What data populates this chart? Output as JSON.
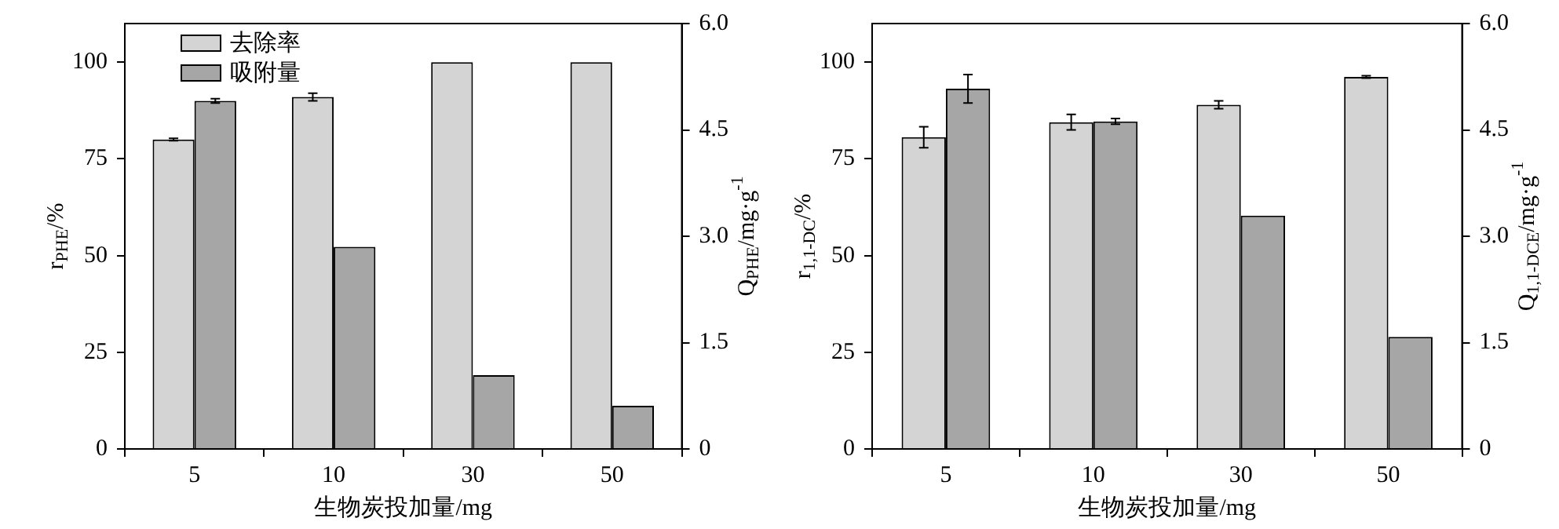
{
  "chart_data": [
    {
      "type": "bar",
      "categories": [
        "5",
        "10",
        "30",
        "50"
      ],
      "xlabel": "生物炭投加量/mg",
      "ylabel": "r$_{PHE}$/%",
      "y2label": "Q$_{PHE}$/mg·g$^{-1}$",
      "ylim": [
        0,
        110
      ],
      "yticks": [
        0,
        25,
        50,
        75,
        100
      ],
      "y2lim": [
        0,
        6
      ],
      "y2ticks": [
        0,
        {
          "value": 1.5,
          "label": "1.5"
        },
        {
          "value": 3,
          "label": "3.0"
        },
        {
          "value": 4.5,
          "label": "4.5"
        },
        {
          "value": 6,
          "label": "6.0"
        }
      ],
      "legend": "top left",
      "grid": false,
      "series": [
        {
          "name": "去除率",
          "color": "#d4d4d4",
          "values": [
            80,
            91,
            100,
            100
          ],
          "errors": [
            0.3,
            1,
            null,
            null
          ]
        },
        {
          "name": "吸附量",
          "color": "#a6a6a6",
          "axis": "y2",
          "values": [
            4.91,
            2.85,
            1.04,
            0.61
          ],
          "errors": [
            0.03,
            null,
            null,
            null
          ]
        }
      ]
    },
    {
      "type": "bar",
      "categories": [
        "5",
        "10",
        "30",
        "50"
      ],
      "xlabel": "生物炭投加量/mg",
      "ylabel": "r$_{1,1-DC}$/%",
      "y2label": "Q$_{1,1-DCE}$/mg·g$^{-1}$",
      "ylim": [
        0,
        110
      ],
      "yticks": [
        0,
        25,
        50,
        75,
        100
      ],
      "y2lim": [
        0,
        6
      ],
      "y2ticks": [
        0,
        {
          "value": 1.5,
          "label": "1.5"
        },
        {
          "value": 3,
          "label": "3.0"
        },
        {
          "value": 4.5,
          "label": "4.5"
        },
        {
          "value": 6,
          "label": "6.0"
        }
      ],
      "grid": false,
      "series": [
        {
          "color": "#d4d4d4",
          "values": [
            80.6,
            84.5,
            89,
            96.2
          ],
          "errors": [
            2.7,
            2,
            1,
            0.3
          ]
        },
        {
          "color": "#a6a6a6",
          "axis": "y2",
          "values": [
            5.08,
            4.62,
            3.29,
            1.58
          ],
          "errors": [
            0.2,
            0.04,
            null,
            null
          ]
        }
      ]
    }
  ]
}
